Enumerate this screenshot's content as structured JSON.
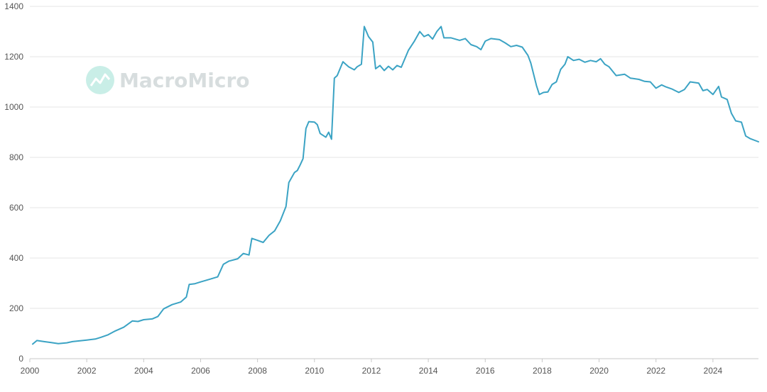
{
  "watermark": {
    "text": "MacroMicro",
    "color": "#bfe9e1"
  },
  "chart_data": {
    "type": "line",
    "title": "",
    "xlabel": "",
    "ylabel": "",
    "xlim": [
      2000,
      2025.6
    ],
    "ylim": [
      0,
      1400
    ],
    "grid": true,
    "x_ticks": [
      2000,
      2002,
      2004,
      2006,
      2008,
      2010,
      2012,
      2014,
      2016,
      2018,
      2020,
      2022,
      2024
    ],
    "y_ticks": [
      0,
      200,
      400,
      600,
      800,
      1000,
      1200,
      1400
    ],
    "series": [
      {
        "color": "#3ba3c4",
        "points": [
          [
            2000.1,
            58
          ],
          [
            2000.25,
            72
          ],
          [
            2000.5,
            68
          ],
          [
            2000.75,
            64
          ],
          [
            2001.0,
            60
          ],
          [
            2001.3,
            63
          ],
          [
            2001.5,
            68
          ],
          [
            2002.0,
            74
          ],
          [
            2002.3,
            78
          ],
          [
            2002.5,
            85
          ],
          [
            2002.75,
            95
          ],
          [
            2003.0,
            110
          ],
          [
            2003.3,
            125
          ],
          [
            2003.6,
            150
          ],
          [
            2003.8,
            148
          ],
          [
            2004.0,
            155
          ],
          [
            2004.3,
            158
          ],
          [
            2004.5,
            168
          ],
          [
            2004.7,
            198
          ],
          [
            2005.0,
            215
          ],
          [
            2005.3,
            225
          ],
          [
            2005.5,
            245
          ],
          [
            2005.6,
            295
          ],
          [
            2005.8,
            298
          ],
          [
            2006.0,
            305
          ],
          [
            2006.3,
            315
          ],
          [
            2006.6,
            325
          ],
          [
            2006.8,
            375
          ],
          [
            2007.0,
            388
          ],
          [
            2007.3,
            397
          ],
          [
            2007.5,
            418
          ],
          [
            2007.7,
            412
          ],
          [
            2007.8,
            478
          ],
          [
            2008.0,
            470
          ],
          [
            2008.2,
            462
          ],
          [
            2008.4,
            490
          ],
          [
            2008.6,
            508
          ],
          [
            2008.8,
            548
          ],
          [
            2009.0,
            605
          ],
          [
            2009.1,
            700
          ],
          [
            2009.3,
            740
          ],
          [
            2009.4,
            748
          ],
          [
            2009.5,
            770
          ],
          [
            2009.6,
            795
          ],
          [
            2009.7,
            915
          ],
          [
            2009.8,
            942
          ],
          [
            2010.0,
            940
          ],
          [
            2010.1,
            930
          ],
          [
            2010.2,
            895
          ],
          [
            2010.4,
            880
          ],
          [
            2010.5,
            900
          ],
          [
            2010.6,
            872
          ],
          [
            2010.7,
            1115
          ],
          [
            2010.8,
            1125
          ],
          [
            2011.0,
            1180
          ],
          [
            2011.2,
            1160
          ],
          [
            2011.4,
            1148
          ],
          [
            2011.5,
            1160
          ],
          [
            2011.65,
            1170
          ],
          [
            2011.75,
            1320
          ],
          [
            2011.9,
            1280
          ],
          [
            2012.05,
            1258
          ],
          [
            2012.15,
            1152
          ],
          [
            2012.3,
            1165
          ],
          [
            2012.45,
            1145
          ],
          [
            2012.6,
            1162
          ],
          [
            2012.75,
            1148
          ],
          [
            2012.9,
            1165
          ],
          [
            2013.05,
            1158
          ],
          [
            2013.3,
            1225
          ],
          [
            2013.5,
            1260
          ],
          [
            2013.7,
            1300
          ],
          [
            2013.85,
            1280
          ],
          [
            2014.0,
            1288
          ],
          [
            2014.15,
            1270
          ],
          [
            2014.3,
            1300
          ],
          [
            2014.45,
            1320
          ],
          [
            2014.55,
            1275
          ],
          [
            2014.8,
            1275
          ],
          [
            2015.1,
            1265
          ],
          [
            2015.3,
            1272
          ],
          [
            2015.5,
            1248
          ],
          [
            2015.7,
            1240
          ],
          [
            2015.85,
            1228
          ],
          [
            2016.0,
            1262
          ],
          [
            2016.2,
            1272
          ],
          [
            2016.5,
            1268
          ],
          [
            2016.7,
            1255
          ],
          [
            2016.9,
            1240
          ],
          [
            2017.1,
            1245
          ],
          [
            2017.3,
            1238
          ],
          [
            2017.5,
            1205
          ],
          [
            2017.6,
            1175
          ],
          [
            2017.8,
            1085
          ],
          [
            2017.9,
            1050
          ],
          [
            2018.05,
            1058
          ],
          [
            2018.2,
            1060
          ],
          [
            2018.35,
            1090
          ],
          [
            2018.5,
            1100
          ],
          [
            2018.65,
            1150
          ],
          [
            2018.8,
            1170
          ],
          [
            2018.9,
            1200
          ],
          [
            2019.1,
            1185
          ],
          [
            2019.3,
            1190
          ],
          [
            2019.5,
            1178
          ],
          [
            2019.7,
            1185
          ],
          [
            2019.9,
            1180
          ],
          [
            2020.05,
            1192
          ],
          [
            2020.2,
            1170
          ],
          [
            2020.35,
            1160
          ],
          [
            2020.6,
            1125
          ],
          [
            2020.9,
            1130
          ],
          [
            2021.1,
            1115
          ],
          [
            2021.4,
            1110
          ],
          [
            2021.6,
            1102
          ],
          [
            2021.8,
            1100
          ],
          [
            2022.0,
            1075
          ],
          [
            2022.2,
            1088
          ],
          [
            2022.35,
            1080
          ],
          [
            2022.55,
            1072
          ],
          [
            2022.8,
            1058
          ],
          [
            2023.0,
            1070
          ],
          [
            2023.2,
            1100
          ],
          [
            2023.5,
            1095
          ],
          [
            2023.65,
            1065
          ],
          [
            2023.8,
            1070
          ],
          [
            2024.0,
            1050
          ],
          [
            2024.2,
            1082
          ],
          [
            2024.3,
            1040
          ],
          [
            2024.5,
            1030
          ],
          [
            2024.65,
            975
          ],
          [
            2024.8,
            945
          ],
          [
            2025.0,
            940
          ],
          [
            2025.15,
            885
          ],
          [
            2025.3,
            875
          ],
          [
            2025.6,
            862
          ]
        ]
      }
    ]
  }
}
